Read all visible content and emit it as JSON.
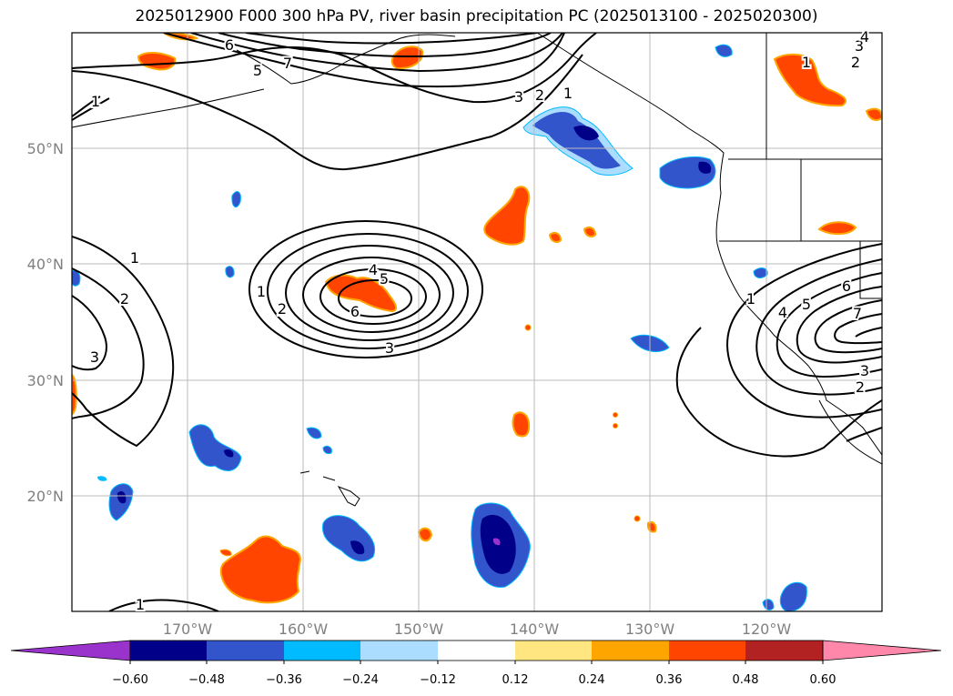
{
  "title": "2025012900 F000 300 hPa PV, river basin precipitation PC (2025013100 - 2025020300)",
  "map": {
    "lon_ticks": [
      "170°W",
      "160°W",
      "150°W",
      "140°W",
      "130°W",
      "120°W"
    ],
    "lat_ticks": [
      "50°N",
      "40°N",
      "30°N",
      "20°N"
    ]
  },
  "colorbar": {
    "ticks": [
      "−0.60",
      "−0.48",
      "−0.36",
      "−0.24",
      "−0.12",
      "0.12",
      "0.24",
      "0.36",
      "0.48",
      "0.60"
    ],
    "colors": [
      "#9933cc",
      "#000088",
      "#3355cc",
      "#00bbff",
      "#aaddff",
      "#ffffff",
      "#ffe680",
      "#ffa500",
      "#ff4500",
      "#b22222",
      "#ff88aa"
    ]
  },
  "pv_contour_labels": [
    {
      "text": "6"
    },
    {
      "text": "5"
    },
    {
      "text": "7"
    },
    {
      "text": "1"
    },
    {
      "text": "3"
    },
    {
      "text": "2"
    },
    {
      "text": "1"
    },
    {
      "text": "1"
    },
    {
      "text": "2"
    },
    {
      "text": "4"
    },
    {
      "text": "1"
    },
    {
      "text": "2"
    },
    {
      "text": "3"
    },
    {
      "text": "4"
    },
    {
      "text": "5"
    },
    {
      "text": "1"
    },
    {
      "text": "2"
    },
    {
      "text": "6"
    },
    {
      "text": "3"
    },
    {
      "text": "1"
    },
    {
      "text": "4"
    },
    {
      "text": "5"
    },
    {
      "text": "6"
    },
    {
      "text": "7"
    },
    {
      "text": "3"
    },
    {
      "text": "2"
    },
    {
      "text": "1"
    }
  ]
}
